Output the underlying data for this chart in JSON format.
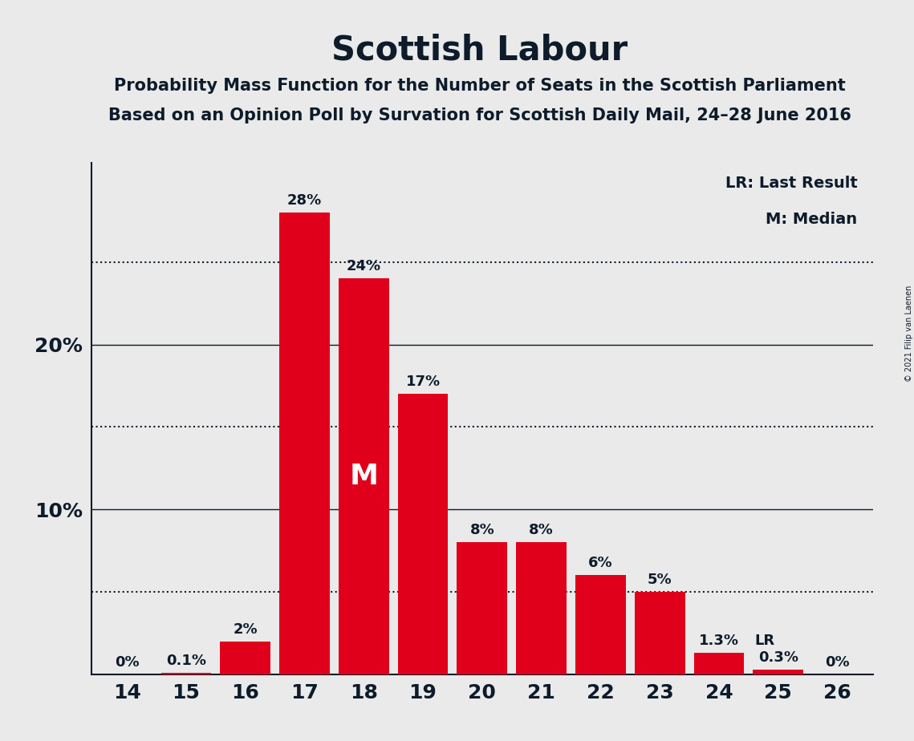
{
  "title": "Scottish Labour",
  "subtitle1": "Probability Mass Function for the Number of Seats in the Scottish Parliament",
  "subtitle2": "Based on an Opinion Poll by Survation for Scottish Daily Mail, 24–28 June 2016",
  "copyright": "© 2021 Filip van Laenen",
  "categories": [
    14,
    15,
    16,
    17,
    18,
    19,
    20,
    21,
    22,
    23,
    24,
    25,
    26
  ],
  "values": [
    0.0,
    0.1,
    2.0,
    28.0,
    24.0,
    17.0,
    8.0,
    8.0,
    6.0,
    5.0,
    1.3,
    0.3,
    0.0
  ],
  "labels": [
    "0%",
    "0.1%",
    "2%",
    "28%",
    "24%",
    "17%",
    "8%",
    "8%",
    "6%",
    "5%",
    "1.3%",
    "0.3%",
    "0%"
  ],
  "bar_color": "#E0001B",
  "background_color": "#EAEAEA",
  "text_color": "#0D1B2A",
  "median_seat": 18,
  "last_result_seat": 24,
  "yticks_solid": [
    10,
    20
  ],
  "yticks_dotted": [
    5,
    15,
    25
  ],
  "ymax": 31,
  "legend_lr": "LR: Last Result",
  "legend_m": "M: Median",
  "title_fontsize": 30,
  "subtitle_fontsize": 15,
  "tick_fontsize": 18,
  "label_fontsize": 13,
  "legend_fontsize": 14,
  "copyright_fontsize": 7
}
